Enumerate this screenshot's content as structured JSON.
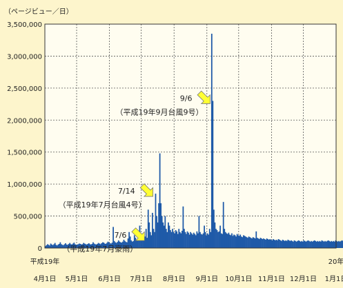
{
  "unit_label": "（ページビュー／日）",
  "chart_data": {
    "type": "bar",
    "ylabel": "（ページビュー／日）",
    "ylim": [
      0,
      3500000
    ],
    "y_ticks": [
      0,
      500000,
      1000000,
      1500000,
      2000000,
      2500000,
      3000000,
      3500000
    ],
    "y_tick_labels": [
      "0",
      "500,000",
      "1,000,000",
      "1,500,000",
      "2,000,000",
      "2,500,000",
      "3,000,000",
      "3,500,000"
    ],
    "x_range": [
      "2007-04-01",
      "2008-01-01"
    ],
    "x_ticks": [
      "2007-04-01",
      "2007-05-01",
      "2007-06-01",
      "2007-07-01",
      "2007-08-01",
      "2007-09-01",
      "2007-10-01",
      "2007-11-01",
      "2007-12-01",
      "2008-01-01"
    ],
    "x_tick_labels": [
      "4月1日",
      "5月1日",
      "6月1日",
      "7月1日",
      "8月1日",
      "9月1日",
      "10月1日",
      "11月1日",
      "12月1日",
      "1月1日"
    ],
    "x_year_labels": [
      {
        "label": "平成19年",
        "at": "2007-04-01"
      },
      {
        "label": "20年",
        "at": "2008-01-01"
      }
    ],
    "grid": true,
    "bar_color": "#1f5aa8",
    "arrow_color": "#ffff33",
    "series_dates_start": "2007-04-01",
    "values": [
      30000,
      45000,
      60000,
      50000,
      40000,
      70000,
      55000,
      45000,
      60000,
      80000,
      50000,
      40000,
      55000,
      65000,
      90000,
      60000,
      50000,
      45000,
      60000,
      75000,
      55000,
      50000,
      65000,
      80000,
      60000,
      55000,
      70000,
      85000,
      60000,
      50000,
      55000,
      60000,
      70000,
      65000,
      55000,
      60000,
      80000,
      70000,
      60000,
      55000,
      65000,
      75000,
      60000,
      55000,
      65000,
      90000,
      70000,
      60000,
      55000,
      65000,
      80000,
      70000,
      60000,
      75000,
      90000,
      85000,
      70000,
      65000,
      80000,
      100000,
      90000,
      75000,
      70000,
      85000,
      330000,
      110000,
      90000,
      80000,
      95000,
      120000,
      100000,
      90000,
      85000,
      100000,
      130000,
      110000,
      95000,
      90000,
      150000,
      250000,
      180000,
      120000,
      100000,
      110000,
      200000,
      160000,
      130000,
      115000,
      130000,
      350000,
      200000,
      150000,
      130000,
      140000,
      180000,
      300000,
      160000,
      600000,
      400000,
      250000,
      200000,
      550000,
      300000,
      250000,
      850000,
      500000,
      400000,
      700000,
      1480000,
      700000,
      500000,
      400000,
      350000,
      500000,
      300000,
      250000,
      400000,
      350000,
      280000,
      250000,
      300000,
      250000,
      230000,
      280000,
      260000,
      220000,
      300000,
      250000,
      230000,
      270000,
      650000,
      300000,
      250000,
      220000,
      260000,
      240000,
      210000,
      250000,
      230000,
      210000,
      240000,
      220000,
      200000,
      260000,
      230000,
      500000,
      250000,
      220000,
      210000,
      230000,
      350000,
      250000,
      200000,
      230000,
      210000,
      300000,
      250000,
      3350000,
      2300000,
      600000,
      400000,
      300000,
      280000,
      250000,
      260000,
      350000,
      230000,
      220000,
      720000,
      300000,
      250000,
      230000,
      220000,
      240000,
      210000,
      200000,
      230000,
      190000,
      210000,
      200000,
      180000,
      220000,
      200000,
      190000,
      210000,
      180000,
      170000,
      200000,
      190000,
      180000,
      170000,
      160000,
      180000,
      170000,
      160000,
      150000,
      170000,
      160000,
      150000,
      260000,
      160000,
      150000,
      140000,
      160000,
      150000,
      140000,
      150000,
      140000,
      130000,
      150000,
      140000,
      130000,
      140000,
      130000,
      120000,
      140000,
      130000,
      120000,
      130000,
      120000,
      140000,
      130000,
      120000,
      110000,
      130000,
      120000,
      110000,
      120000,
      110000,
      130000,
      120000,
      110000,
      120000,
      110000,
      100000,
      120000,
      110000,
      100000,
      110000,
      120000,
      110000,
      100000,
      110000,
      100000,
      120000,
      110000,
      100000,
      110000,
      120000,
      110000,
      100000,
      110000,
      100000,
      110000,
      120000,
      110000,
      100000,
      110000,
      100000,
      110000,
      100000,
      120000,
      110000,
      100000,
      110000,
      100000,
      110000,
      120000,
      110000,
      100000,
      110000,
      100000,
      110000,
      100000,
      120000,
      110000,
      100000,
      110000,
      100000,
      110000,
      120000,
      110000,
      100000,
      110000,
      100000,
      110000,
      100000,
      110000,
      100000
    ],
    "annotations": [
      {
        "date_label": "9/6",
        "event": "（平成19年9月台風9号）",
        "date": "2007-09-06"
      },
      {
        "date_label": "7/14",
        "event": "（平成19年7月台風4号）",
        "date": "2007-07-14"
      },
      {
        "date_label": "7/6",
        "event": "（平成19年7月豪雨）",
        "date": "2007-07-06"
      }
    ]
  }
}
